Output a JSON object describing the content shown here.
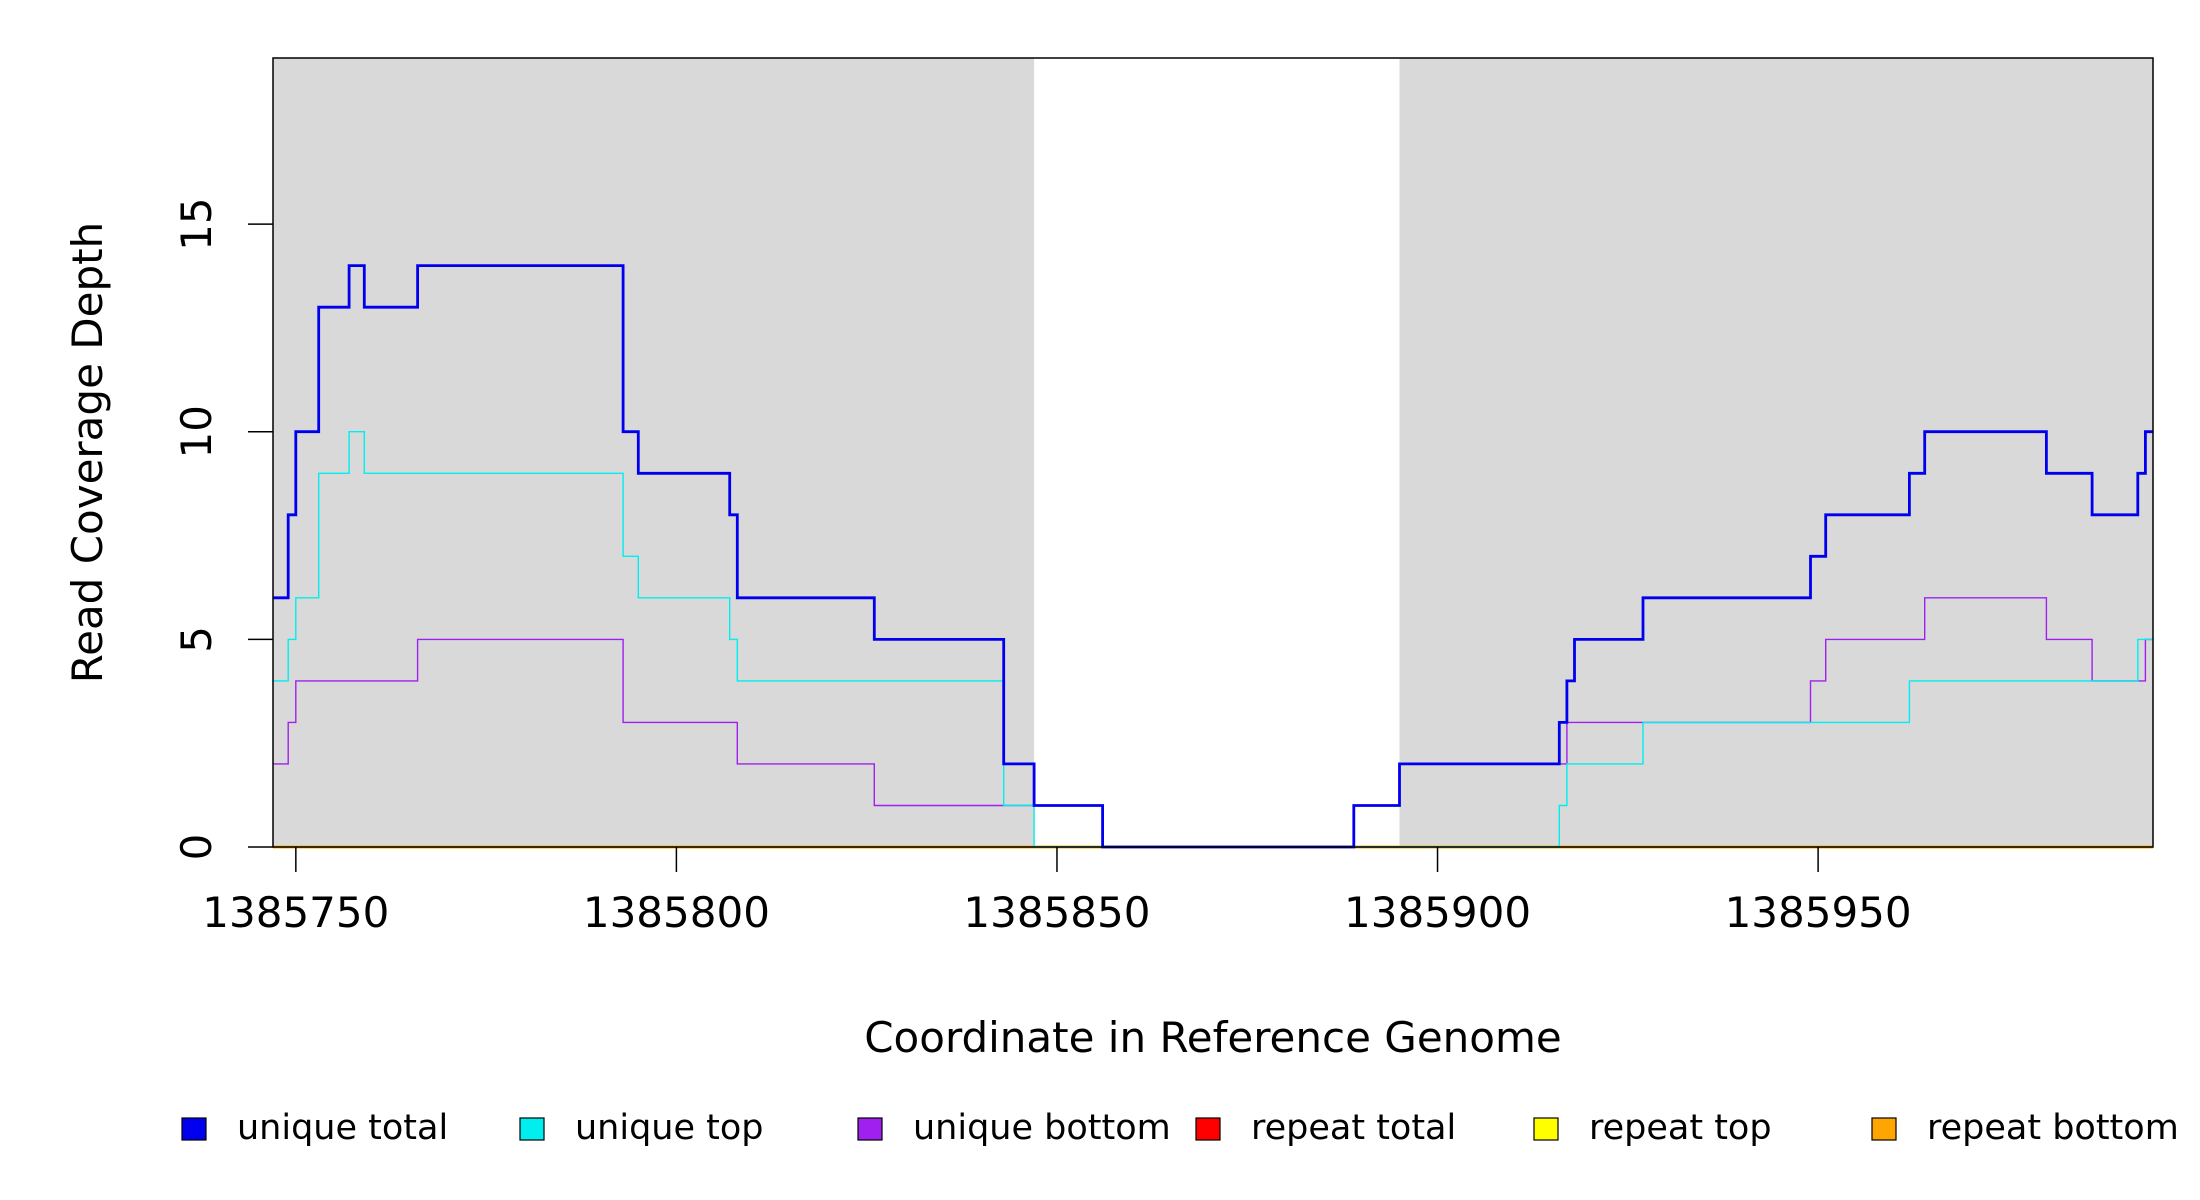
{
  "chart_data": {
    "type": "line",
    "xlabel": "Coordinate in Reference Genome",
    "ylabel": "Read Coverage Depth",
    "xlim": [
      1385747,
      1385994
    ],
    "ylim": [
      0,
      19
    ],
    "x_ticks": [
      1385750,
      1385800,
      1385850,
      1385900,
      1385950
    ],
    "x_tick_labels": [
      "1385750",
      "1385800",
      "1385850",
      "1385900",
      "1385950"
    ],
    "y_ticks": [
      0,
      5,
      10,
      15
    ],
    "y_tick_labels": [
      "0",
      "5",
      "10",
      "15"
    ],
    "shaded_regions": [
      {
        "start": 1385747,
        "end": 1385847
      },
      {
        "start": 1385895,
        "end": 1385994
      }
    ],
    "shade_color": "#d9d9d9",
    "legend_position": "bottom",
    "legend": [
      {
        "label": "unique total",
        "color": "#0000ee"
      },
      {
        "label": "unique top",
        "color": "#00eeee"
      },
      {
        "label": "unique bottom",
        "color": "#a020f0"
      },
      {
        "label": "repeat total",
        "color": "#ff0000"
      },
      {
        "label": "repeat top",
        "color": "#ffff00"
      },
      {
        "label": "repeat bottom",
        "color": "#ffa500"
      }
    ],
    "series": [
      {
        "name": "unique total",
        "color": "#0000ee",
        "step": true,
        "points": [
          [
            1385747,
            6
          ],
          [
            1385749,
            8
          ],
          [
            1385750,
            10
          ],
          [
            1385753,
            13
          ],
          [
            1385757,
            14
          ],
          [
            1385759,
            13
          ],
          [
            1385766,
            14
          ],
          [
            1385793,
            10
          ],
          [
            1385795,
            9
          ],
          [
            1385807,
            8
          ],
          [
            1385808,
            6
          ],
          [
            1385826,
            5
          ],
          [
            1385843,
            2
          ],
          [
            1385847,
            1
          ],
          [
            1385856,
            0
          ],
          [
            1385889,
            1
          ],
          [
            1385895,
            2
          ],
          [
            1385916,
            3
          ],
          [
            1385917,
            4
          ],
          [
            1385918,
            5
          ],
          [
            1385927,
            6
          ],
          [
            1385949,
            7
          ],
          [
            1385951,
            8
          ],
          [
            1385962,
            9
          ],
          [
            1385964,
            10
          ],
          [
            1385980,
            9
          ],
          [
            1385986,
            8
          ],
          [
            1385992,
            9
          ],
          [
            1385993,
            10
          ],
          [
            1385994,
            10
          ]
        ]
      },
      {
        "name": "unique top",
        "color": "#00eeee",
        "step": true,
        "points": [
          [
            1385747,
            4
          ],
          [
            1385749,
            5
          ],
          [
            1385750,
            6
          ],
          [
            1385753,
            9
          ],
          [
            1385757,
            10
          ],
          [
            1385759,
            9
          ],
          [
            1385793,
            7
          ],
          [
            1385795,
            6
          ],
          [
            1385807,
            5
          ],
          [
            1385808,
            4
          ],
          [
            1385843,
            1
          ],
          [
            1385847,
            0
          ],
          [
            1385916,
            1
          ],
          [
            1385917,
            2
          ],
          [
            1385927,
            3
          ],
          [
            1385962,
            4
          ],
          [
            1385992,
            5
          ],
          [
            1385994,
            5
          ]
        ]
      },
      {
        "name": "unique bottom",
        "color": "#a020f0",
        "step": true,
        "points": [
          [
            1385747,
            2
          ],
          [
            1385749,
            3
          ],
          [
            1385750,
            4
          ],
          [
            1385766,
            5
          ],
          [
            1385793,
            3
          ],
          [
            1385808,
            2
          ],
          [
            1385826,
            1
          ],
          [
            1385856,
            0
          ],
          [
            1385889,
            1
          ],
          [
            1385895,
            2
          ],
          [
            1385917,
            3
          ],
          [
            1385949,
            4
          ],
          [
            1385951,
            5
          ],
          [
            1385964,
            6
          ],
          [
            1385980,
            5
          ],
          [
            1385986,
            4
          ],
          [
            1385993,
            5
          ],
          [
            1385994,
            5
          ]
        ]
      },
      {
        "name": "repeat total",
        "color": "#ff0000",
        "step": true,
        "points": [
          [
            1385747,
            0
          ],
          [
            1385994,
            0
          ]
        ]
      },
      {
        "name": "repeat top",
        "color": "#ffff00",
        "step": true,
        "points": [
          [
            1385747,
            0
          ],
          [
            1385994,
            0
          ]
        ]
      },
      {
        "name": "repeat bottom",
        "color": "#ffa500",
        "step": true,
        "points": [
          [
            1385747,
            0
          ],
          [
            1385994,
            0
          ]
        ]
      }
    ]
  }
}
